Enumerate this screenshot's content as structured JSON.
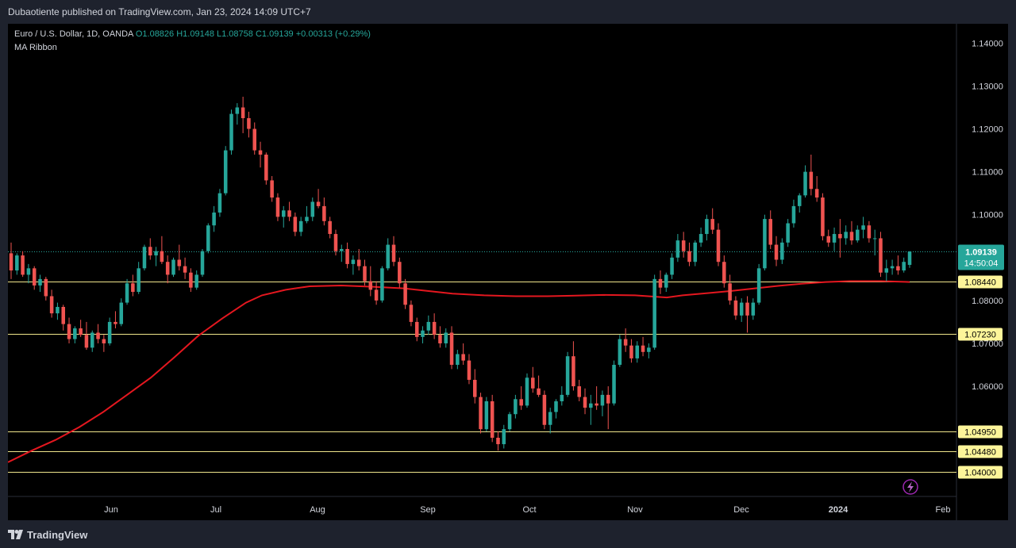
{
  "header": {
    "published_by": "Dubaotiente published on TradingView.com, Jan 23, 2024 14:09 UTC+7"
  },
  "legend": {
    "symbol": "Euro / U.S. Dollar, 1D, OANDA",
    "open": "O1.08826",
    "high": "H1.09148",
    "low": "L1.08758",
    "close": "C1.09139",
    "change": "+0.00313 (+0.29%)",
    "indicator": "MA Ribbon"
  },
  "footer": {
    "logo_text": "TradingView"
  },
  "colors": {
    "up": "#26a69a",
    "down": "#ef5350",
    "ma": "#e4171f",
    "level": "#f0e68c",
    "background": "#000000",
    "grid_text": "#d1d4dc"
  },
  "chart_data": {
    "type": "candlestick",
    "title": "",
    "ylim": [
      1.0345,
      1.1445
    ],
    "y_ticks": [
      "1.14000",
      "1.13000",
      "1.12000",
      "1.11000",
      "1.10000",
      "1.08000",
      "1.07000",
      "1.06000"
    ],
    "x_ticks": [
      "Jun",
      "Jul",
      "Aug",
      "Sep",
      "Oct",
      "Nov",
      "Dec",
      "2024",
      "Feb"
    ],
    "current_price": {
      "value": 1.09139,
      "label": "1.09139",
      "countdown": "14:50:04"
    },
    "horizontal_levels": [
      {
        "value": 1.0844,
        "label": "1.08440"
      },
      {
        "value": 1.0723,
        "label": "1.07230"
      },
      {
        "value": 1.0495,
        "label": "1.04950"
      },
      {
        "value": 1.0448,
        "label": "1.04480"
      },
      {
        "value": 1.04,
        "label": "1.04000"
      }
    ],
    "moving_average": [
      [
        0,
        1.0423
      ],
      [
        30,
        1.045
      ],
      [
        60,
        1.0475
      ],
      [
        90,
        1.0505
      ],
      [
        120,
        1.054
      ],
      [
        150,
        1.058
      ],
      [
        180,
        1.062
      ],
      [
        210,
        1.0668
      ],
      [
        240,
        1.0718
      ],
      [
        270,
        1.0758
      ],
      [
        300,
        1.0795
      ],
      [
        320,
        1.0812
      ],
      [
        350,
        1.0825
      ],
      [
        380,
        1.0833
      ],
      [
        420,
        1.0835
      ],
      [
        460,
        1.0832
      ],
      [
        500,
        1.0828
      ],
      [
        530,
        1.0822
      ],
      [
        560,
        1.0816
      ],
      [
        600,
        1.0812
      ],
      [
        640,
        1.081
      ],
      [
        680,
        1.081
      ],
      [
        710,
        1.0811
      ],
      [
        750,
        1.0813
      ],
      [
        790,
        1.0812
      ],
      [
        830,
        1.0807
      ],
      [
        850,
        1.0812
      ],
      [
        880,
        1.0817
      ],
      [
        910,
        1.0822
      ],
      [
        940,
        1.0828
      ],
      [
        970,
        1.0834
      ],
      [
        1000,
        1.0839
      ],
      [
        1030,
        1.0843
      ],
      [
        1060,
        1.0845
      ],
      [
        1100,
        1.0845
      ],
      [
        1136,
        1.0843
      ]
    ],
    "candles": [
      [
        1.091,
        1.0935,
        1.085,
        1.087
      ],
      [
        1.087,
        1.091,
        1.086,
        1.0905
      ],
      [
        1.0905,
        1.0915,
        1.0855,
        1.086
      ],
      [
        1.086,
        1.0885,
        1.084,
        1.0875
      ],
      [
        1.0875,
        1.088,
        1.0825,
        1.0835
      ],
      [
        1.0835,
        1.086,
        1.082,
        1.085
      ],
      [
        1.085,
        1.0855,
        1.08,
        1.081
      ],
      [
        1.081,
        1.0825,
        1.076,
        1.077
      ],
      [
        1.077,
        1.0795,
        1.0755,
        1.0785
      ],
      [
        1.0785,
        1.079,
        1.073,
        1.0745
      ],
      [
        1.0745,
        1.076,
        1.07,
        1.071
      ],
      [
        1.071,
        1.074,
        1.07,
        1.0735
      ],
      [
        1.0735,
        1.0755,
        1.0715,
        1.072
      ],
      [
        1.072,
        1.075,
        1.0685,
        1.069
      ],
      [
        1.069,
        1.073,
        1.068,
        1.0725
      ],
      [
        1.0725,
        1.0745,
        1.07,
        1.071
      ],
      [
        1.071,
        1.072,
        1.068,
        1.07
      ],
      [
        1.07,
        1.076,
        1.0695,
        1.075
      ],
      [
        1.075,
        1.0775,
        1.0735,
        1.0745
      ],
      [
        1.0745,
        1.0805,
        1.074,
        1.0795
      ],
      [
        1.0795,
        1.085,
        1.079,
        1.084
      ],
      [
        1.084,
        1.086,
        1.081,
        1.082
      ],
      [
        1.082,
        1.089,
        1.0815,
        1.0875
      ],
      [
        1.0875,
        1.093,
        1.087,
        1.0925
      ],
      [
        1.0925,
        1.0945,
        1.0895,
        1.0905
      ],
      [
        1.0905,
        1.0925,
        1.088,
        1.0915
      ],
      [
        1.0915,
        1.095,
        1.0885,
        1.089
      ],
      [
        1.089,
        1.0905,
        1.084,
        1.086
      ],
      [
        1.086,
        1.09,
        1.0855,
        1.0895
      ],
      [
        1.0895,
        1.093,
        1.087,
        1.088
      ],
      [
        1.088,
        1.09,
        1.085,
        1.0865
      ],
      [
        1.0865,
        1.0875,
        1.082,
        1.083
      ],
      [
        1.083,
        1.087,
        1.0825,
        1.086
      ],
      [
        1.086,
        1.092,
        1.0855,
        1.0915
      ],
      [
        1.0915,
        1.098,
        1.091,
        1.0975
      ],
      [
        1.0975,
        1.102,
        1.096,
        1.1005
      ],
      [
        1.1005,
        1.106,
        1.0995,
        1.105
      ],
      [
        1.105,
        1.116,
        1.1045,
        1.115
      ],
      [
        1.115,
        1.1245,
        1.114,
        1.1235
      ],
      [
        1.1235,
        1.126,
        1.121,
        1.125
      ],
      [
        1.125,
        1.1275,
        1.119,
        1.1225
      ],
      [
        1.1225,
        1.124,
        1.118,
        1.12
      ],
      [
        1.12,
        1.1215,
        1.114,
        1.115
      ],
      [
        1.115,
        1.117,
        1.111,
        1.114
      ],
      [
        1.114,
        1.1145,
        1.107,
        1.108
      ],
      [
        1.108,
        1.109,
        1.103,
        1.104
      ],
      [
        1.104,
        1.105,
        1.0985,
        1.0995
      ],
      [
        1.0995,
        1.102,
        1.097,
        1.101
      ],
      [
        1.101,
        1.103,
        1.0985,
        1.0995
      ],
      [
        1.0995,
        1.1005,
        1.095,
        1.096
      ],
      [
        1.096,
        1.0995,
        1.095,
        1.0985
      ],
      [
        1.0985,
        1.102,
        1.098,
        1.0995
      ],
      [
        1.0995,
        1.104,
        1.0985,
        1.103
      ],
      [
        1.103,
        1.106,
        1.1015,
        1.102
      ],
      [
        1.102,
        1.104,
        1.0975,
        1.0985
      ],
      [
        1.0985,
        1.0995,
        1.0945,
        1.0955
      ],
      [
        1.0955,
        1.0965,
        1.0905,
        1.0915
      ],
      [
        1.0915,
        1.093,
        1.089,
        1.092
      ],
      [
        1.092,
        1.0935,
        1.0875,
        1.0885
      ],
      [
        1.0885,
        1.0905,
        1.086,
        1.0895
      ],
      [
        1.0895,
        1.092,
        1.087,
        1.088
      ],
      [
        1.088,
        1.0895,
        1.0835,
        1.0845
      ],
      [
        1.0845,
        1.088,
        1.081,
        1.0825
      ],
      [
        1.0825,
        1.0845,
        1.079,
        1.08
      ],
      [
        1.08,
        1.088,
        1.0795,
        1.0875
      ],
      [
        1.0875,
        1.0945,
        1.087,
        1.093
      ],
      [
        1.093,
        1.095,
        1.088,
        1.089
      ],
      [
        1.089,
        1.09,
        1.083,
        1.084
      ],
      [
        1.084,
        1.085,
        1.078,
        1.079
      ],
      [
        1.079,
        1.08,
        1.074,
        1.075
      ],
      [
        1.075,
        1.076,
        1.0705,
        1.0715
      ],
      [
        1.0715,
        1.074,
        1.07,
        1.073
      ],
      [
        1.073,
        1.0765,
        1.072,
        1.075
      ],
      [
        1.075,
        1.077,
        1.071,
        1.072
      ],
      [
        1.072,
        1.074,
        1.069,
        1.07
      ],
      [
        1.07,
        1.0735,
        1.069,
        1.0725
      ],
      [
        1.0725,
        1.074,
        1.064,
        1.065
      ],
      [
        1.065,
        1.0685,
        1.064,
        1.0675
      ],
      [
        1.0675,
        1.07,
        1.065,
        1.066
      ],
      [
        1.066,
        1.0675,
        1.0605,
        1.0615
      ],
      [
        1.0615,
        1.064,
        1.056,
        1.0575
      ],
      [
        1.0575,
        1.0585,
        1.049,
        1.05
      ],
      [
        1.05,
        1.0575,
        1.0495,
        1.0565
      ],
      [
        1.0565,
        1.058,
        1.047,
        1.048
      ],
      [
        1.048,
        1.0495,
        1.045,
        1.0465
      ],
      [
        1.0465,
        1.051,
        1.0455,
        1.05
      ],
      [
        1.05,
        1.054,
        1.0495,
        1.0535
      ],
      [
        1.0535,
        1.058,
        1.0525,
        1.057
      ],
      [
        1.057,
        1.06,
        1.0545,
        1.0555
      ],
      [
        1.0555,
        1.063,
        1.055,
        1.062
      ],
      [
        1.062,
        1.0645,
        1.0585,
        1.0595
      ],
      [
        1.0595,
        1.0625,
        1.0575,
        1.058
      ],
      [
        1.058,
        1.059,
        1.05,
        1.051
      ],
      [
        1.051,
        1.055,
        1.049,
        1.054
      ],
      [
        1.054,
        1.057,
        1.0525,
        1.0565
      ],
      [
        1.0565,
        1.06,
        1.0555,
        1.058
      ],
      [
        1.058,
        1.068,
        1.0575,
        1.067
      ],
      [
        1.067,
        1.0705,
        1.059,
        1.06
      ],
      [
        1.06,
        1.0615,
        1.0565,
        1.0575
      ],
      [
        1.0575,
        1.0595,
        1.0535,
        1.055
      ],
      [
        1.055,
        1.058,
        1.051,
        1.056
      ],
      [
        1.056,
        1.06,
        1.0545,
        1.0555
      ],
      [
        1.0555,
        1.059,
        1.053,
        1.058
      ],
      [
        1.058,
        1.06,
        1.05,
        1.056
      ],
      [
        1.056,
        1.066,
        1.0555,
        1.065
      ],
      [
        1.065,
        1.072,
        1.0645,
        1.071
      ],
      [
        1.071,
        1.0735,
        1.068,
        1.0695
      ],
      [
        1.0695,
        1.071,
        1.0655,
        1.0665
      ],
      [
        1.0665,
        1.0705,
        1.0655,
        1.0695
      ],
      [
        1.0695,
        1.0715,
        1.067,
        1.068
      ],
      [
        1.068,
        1.07,
        1.0665,
        1.069
      ],
      [
        1.069,
        1.086,
        1.0685,
        1.085
      ],
      [
        1.085,
        1.087,
        1.0815,
        1.083
      ],
      [
        1.083,
        1.0865,
        1.082,
        1.086
      ],
      [
        1.086,
        1.091,
        1.085,
        1.09
      ],
      [
        1.09,
        1.0955,
        1.089,
        1.094
      ],
      [
        1.094,
        1.096,
        1.09,
        1.0915
      ],
      [
        1.0915,
        1.0935,
        1.088,
        1.089
      ],
      [
        1.089,
        1.094,
        1.088,
        1.0935
      ],
      [
        1.0935,
        1.097,
        1.0925,
        1.0955
      ],
      [
        1.0955,
        1.1,
        1.094,
        1.099
      ],
      [
        1.099,
        1.1015,
        1.0955,
        1.0965
      ],
      [
        1.0965,
        1.098,
        1.088,
        1.089
      ],
      [
        1.089,
        1.0905,
        1.083,
        1.084
      ],
      [
        1.084,
        1.086,
        1.079,
        1.08
      ],
      [
        1.08,
        1.081,
        1.0755,
        1.0765
      ],
      [
        1.0765,
        1.0805,
        1.075,
        1.0795
      ],
      [
        1.0795,
        1.081,
        1.0725,
        1.0765
      ],
      [
        1.0765,
        1.0805,
        1.0755,
        1.0795
      ],
      [
        1.0795,
        1.0885,
        1.079,
        1.0875
      ],
      [
        1.0875,
        1.1,
        1.087,
        1.099
      ],
      [
        1.099,
        1.101,
        1.092,
        1.093
      ],
      [
        1.093,
        1.095,
        1.088,
        1.0895
      ],
      [
        1.0895,
        1.0945,
        1.0885,
        1.0935
      ],
      [
        1.0935,
        1.099,
        1.0925,
        1.098
      ],
      [
        1.098,
        1.1035,
        1.097,
        1.102
      ],
      [
        1.102,
        1.105,
        1.1005,
        1.1045
      ],
      [
        1.1045,
        1.1115,
        1.104,
        1.11
      ],
      [
        1.11,
        1.114,
        1.1045,
        1.106
      ],
      [
        1.106,
        1.109,
        1.103,
        1.104
      ],
      [
        1.104,
        1.105,
        1.094,
        1.095
      ],
      [
        1.095,
        1.0965,
        1.0925,
        1.0935
      ],
      [
        1.0935,
        1.097,
        1.0915,
        1.0955
      ],
      [
        1.0955,
        1.099,
        1.09,
        1.0945
      ],
      [
        1.0945,
        1.0975,
        1.093,
        1.096
      ],
      [
        1.096,
        1.0985,
        1.093,
        1.094
      ],
      [
        1.094,
        1.0975,
        1.0935,
        1.0965
      ],
      [
        1.0965,
        1.0995,
        1.0945,
        1.0975
      ],
      [
        1.0975,
        1.0985,
        1.0935,
        1.0945
      ],
      [
        1.0945,
        1.0965,
        1.0905,
        1.0945
      ],
      [
        1.0945,
        1.096,
        1.0855,
        1.0865
      ],
      [
        1.0865,
        1.0895,
        1.0845,
        1.0875
      ],
      [
        1.0875,
        1.0895,
        1.086,
        1.088
      ],
      [
        1.088,
        1.0905,
        1.086,
        1.087
      ],
      [
        1.087,
        1.09,
        1.0865,
        1.089
      ],
      [
        1.0883,
        1.0915,
        1.0876,
        1.0914
      ]
    ]
  }
}
